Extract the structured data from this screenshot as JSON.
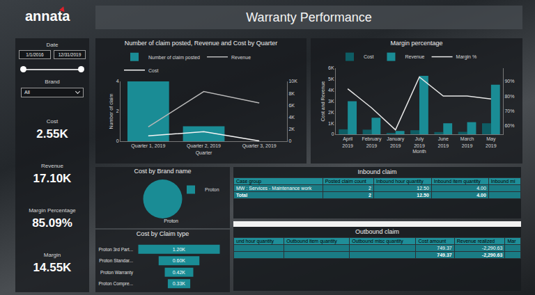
{
  "header": {
    "logo": "annata",
    "title": "Warranty Performance"
  },
  "filters": {
    "date": {
      "label": "Date",
      "from": "1/1/2016",
      "to": "12/31/2019"
    },
    "brand": {
      "label": "Brand",
      "value": "All"
    }
  },
  "kpis": [
    {
      "label": "Cost",
      "value": "2.55K"
    },
    {
      "label": "Revenue",
      "value": "17.10K"
    },
    {
      "label": "Margin Percentage",
      "value": "85.09%"
    },
    {
      "label": "Margin",
      "value": "14.55K"
    }
  ],
  "chart_data": [
    {
      "type": "bar",
      "title": "Number of claim posted, Revenue and Cost by Quarter",
      "x_label": "Quarter",
      "y_label": "Number of claim",
      "categories": [
        "Quarter 1, 2019",
        "Quarter 2, 2019",
        "Quarter 3, 2019"
      ],
      "series": [
        {
          "name": "Number of claim posted",
          "type": "bar",
          "color": "#1a8c95",
          "values": [
            4,
            1,
            0
          ]
        },
        {
          "name": "Revenue",
          "type": "line",
          "axis": "y2",
          "color": "#b8b8b8",
          "values": [
            2400,
            8300,
            6400
          ]
        },
        {
          "name": "Cost",
          "type": "line",
          "axis": "y2",
          "color": "#f4f4f4",
          "values": [
            900,
            1600,
            50
          ]
        }
      ],
      "ylim": [
        0,
        4
      ],
      "yticks": [
        0,
        2,
        4
      ],
      "y2lim": [
        0,
        10000
      ],
      "y2ticks": [
        0,
        {
          "value": 2000,
          "label": "2K"
        },
        {
          "value": 4000,
          "label": "4K"
        },
        {
          "value": 6000,
          "label": "6K"
        },
        {
          "value": 8000,
          "label": "8K"
        },
        {
          "value": 10000,
          "label": "10K"
        }
      ],
      "legend": "top",
      "grid": false
    },
    {
      "type": "bar",
      "title": "Margin percentage",
      "x_label": "Month",
      "y_label": "Cost and Revenue",
      "categories": [
        "April 2019",
        "February 2019",
        "January 2019",
        "July 2019",
        "June 2019",
        "March 2019",
        "May 2019"
      ],
      "series": [
        {
          "name": "Cost",
          "type": "bar",
          "color": "#0e5d64",
          "values": [
            450,
            420,
            130,
            370,
            200,
            220,
            1000
          ]
        },
        {
          "name": "Revenue",
          "type": "bar",
          "color": "#1a8c95",
          "values": [
            3000,
            1500,
            300,
            5300,
            1000,
            1100,
            4500
          ]
        },
        {
          "name": "Margin %",
          "type": "line",
          "axis": "y2",
          "color": "#e6e6e6",
          "values": [
            85,
            72,
            57,
            93,
            80,
            80,
            78
          ]
        }
      ],
      "ylim": [
        0,
        6000
      ],
      "yticks": [
        0,
        {
          "value": 1000,
          "label": "1K"
        },
        {
          "value": 2000,
          "label": "2K"
        },
        {
          "value": 3000,
          "label": "3K"
        },
        {
          "value": 4000,
          "label": "4K"
        },
        {
          "value": 5000,
          "label": "5K"
        },
        {
          "value": 6000,
          "label": "6K"
        }
      ],
      "y2lim": [
        54,
        99
      ],
      "y2ticks": [
        {
          "value": 60,
          "label": "60%"
        },
        {
          "value": 70,
          "label": "70%"
        },
        {
          "value": 80,
          "label": "80%"
        },
        {
          "value": 90,
          "label": "90%"
        }
      ],
      "legend": "top",
      "grid": false
    },
    {
      "type": "pie",
      "title": "Cost by Brand name",
      "categories": [
        "Proton"
      ],
      "values": [
        2550
      ],
      "colors": [
        "#1a8c95"
      ],
      "legend": "top right"
    },
    {
      "type": "funnel",
      "title": "Cost by Claim type",
      "orientation": "horizontal",
      "categories": [
        "Proton 3rd Part...",
        "Proton Standar...",
        "Proton Warranty",
        "Proton Compre..."
      ],
      "values": [
        1200,
        600,
        420,
        330
      ],
      "value_labels": [
        "1.20K",
        "0.60K",
        "0.42K",
        "0.33K"
      ],
      "color": "#1a8c95",
      "data_labels": true,
      "tick_labels": "y"
    }
  ],
  "tables": [
    {
      "title": "Inbound claim",
      "columns": [
        "Case group",
        "Posted claim count",
        "Inbound hour quantity",
        "Inbound item quantity",
        "Inbound mi"
      ],
      "rows": [
        [
          "MW : Services - Maintenance work",
          "2",
          "12.50",
          "4.00",
          null
        ],
        [
          "Total",
          "2",
          "12.50",
          "4.00",
          null
        ]
      ]
    },
    {
      "title": "Outbound claim",
      "columns": [
        "und hour quantity",
        "Outbound item quantity",
        "Outbound misc quantity",
        "Cost amount",
        "Revenue realized",
        "Mar"
      ],
      "rows": [
        [
          null,
          null,
          null,
          "749.37",
          "-2,290.63",
          null
        ],
        [
          null,
          null,
          null,
          "749.37",
          "-2,290.63",
          null
        ]
      ]
    }
  ]
}
